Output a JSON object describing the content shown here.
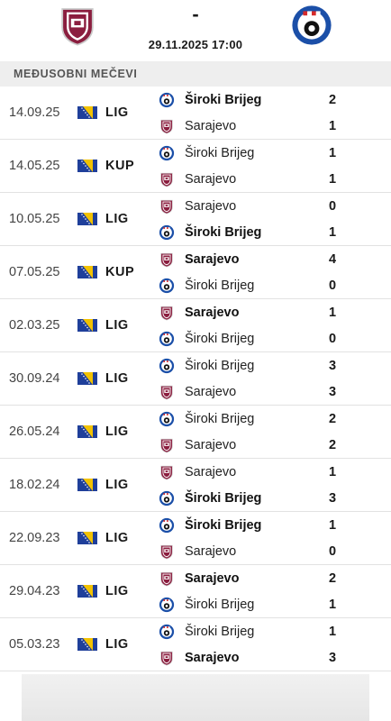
{
  "header": {
    "home_logo": "sarajevo-crest",
    "away_logo": "siroki-brijeg-crest",
    "score_separator": "-",
    "datetime": "29.11.2025 17:00"
  },
  "section": {
    "title": "MEĐUSOBNI MEČEVI"
  },
  "colors": {
    "sarajevo_maroon": "#8b1e3f",
    "siroki_blue": "#1b4fa8",
    "bih_flag_blue": "#1f3f9a",
    "bih_flag_yellow": "#f2c200"
  },
  "matches": [
    {
      "date": "14.09.25",
      "competition": "LIG",
      "team1": {
        "name": "Široki Brijeg",
        "crest": "siroki",
        "score": "2",
        "winner": true
      },
      "team2": {
        "name": "Sarajevo",
        "crest": "sarajevo",
        "score": "1",
        "winner": false
      }
    },
    {
      "date": "14.05.25",
      "competition": "KUP",
      "team1": {
        "name": "Široki Brijeg",
        "crest": "siroki",
        "score": "1",
        "winner": false
      },
      "team2": {
        "name": "Sarajevo",
        "crest": "sarajevo",
        "score": "1",
        "winner": false
      }
    },
    {
      "date": "10.05.25",
      "competition": "LIG",
      "team1": {
        "name": "Sarajevo",
        "crest": "sarajevo",
        "score": "0",
        "winner": false
      },
      "team2": {
        "name": "Široki Brijeg",
        "crest": "siroki",
        "score": "1",
        "winner": true
      }
    },
    {
      "date": "07.05.25",
      "competition": "KUP",
      "team1": {
        "name": "Sarajevo",
        "crest": "sarajevo",
        "score": "4",
        "winner": true
      },
      "team2": {
        "name": "Široki Brijeg",
        "crest": "siroki",
        "score": "0",
        "winner": false
      }
    },
    {
      "date": "02.03.25",
      "competition": "LIG",
      "team1": {
        "name": "Sarajevo",
        "crest": "sarajevo",
        "score": "1",
        "winner": true
      },
      "team2": {
        "name": "Široki Brijeg",
        "crest": "siroki",
        "score": "0",
        "winner": false
      }
    },
    {
      "date": "30.09.24",
      "competition": "LIG",
      "team1": {
        "name": "Široki Brijeg",
        "crest": "siroki",
        "score": "3",
        "winner": false
      },
      "team2": {
        "name": "Sarajevo",
        "crest": "sarajevo",
        "score": "3",
        "winner": false
      }
    },
    {
      "date": "26.05.24",
      "competition": "LIG",
      "team1": {
        "name": "Široki Brijeg",
        "crest": "siroki",
        "score": "2",
        "winner": false
      },
      "team2": {
        "name": "Sarajevo",
        "crest": "sarajevo",
        "score": "2",
        "winner": false
      }
    },
    {
      "date": "18.02.24",
      "competition": "LIG",
      "team1": {
        "name": "Sarajevo",
        "crest": "sarajevo",
        "score": "1",
        "winner": false
      },
      "team2": {
        "name": "Široki Brijeg",
        "crest": "siroki",
        "score": "3",
        "winner": true
      }
    },
    {
      "date": "22.09.23",
      "competition": "LIG",
      "team1": {
        "name": "Široki Brijeg",
        "crest": "siroki",
        "score": "1",
        "winner": true
      },
      "team2": {
        "name": "Sarajevo",
        "crest": "sarajevo",
        "score": "0",
        "winner": false
      }
    },
    {
      "date": "29.04.23",
      "competition": "LIG",
      "team1": {
        "name": "Sarajevo",
        "crest": "sarajevo",
        "score": "2",
        "winner": true
      },
      "team2": {
        "name": "Široki Brijeg",
        "crest": "siroki",
        "score": "1",
        "winner": false
      }
    },
    {
      "date": "05.03.23",
      "competition": "LIG",
      "team1": {
        "name": "Široki Brijeg",
        "crest": "siroki",
        "score": "1",
        "winner": false
      },
      "team2": {
        "name": "Sarajevo",
        "crest": "sarajevo",
        "score": "3",
        "winner": true
      }
    }
  ]
}
